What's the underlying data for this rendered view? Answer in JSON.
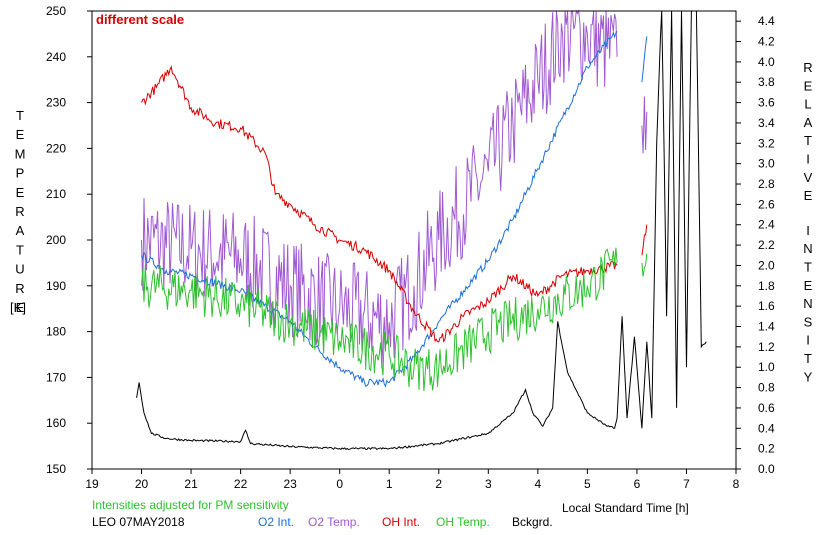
{
  "chart_data": {
    "type": "line",
    "title": "different scale",
    "xlabel": "Local Standard Time [h]",
    "ylabel_left": "TEMPERATURE",
    "ylabel_left_unit": "[K]",
    "ylabel_right": "RELATIVE INTENSITY",
    "note": "Intensities adjusted for PM sensitivity",
    "station_date": "LEO 07MAY2018",
    "xlim": [
      19,
      8
    ],
    "x_ticks": [
      "19",
      "20",
      "21",
      "22",
      "23",
      "0",
      "1",
      "2",
      "3",
      "4",
      "5",
      "6",
      "7",
      "8"
    ],
    "y_left_lim": [
      150,
      250
    ],
    "y_left_ticks": [
      "150",
      "160",
      "170",
      "180",
      "190",
      "200",
      "210",
      "220",
      "230",
      "240",
      "250"
    ],
    "y_right_lim": [
      0.0,
      4.5
    ],
    "y_right_ticks": [
      "0.0",
      "0.2",
      "0.4",
      "0.6",
      "0.8",
      "1.0",
      "1.2",
      "1.4",
      "1.6",
      "1.8",
      "2.0",
      "2.2",
      "2.4",
      "2.6",
      "2.8",
      "3.0",
      "3.2",
      "3.4",
      "3.6",
      "3.8",
      "4.0",
      "4.2",
      "4.4"
    ],
    "legend": [
      {
        "name": "O2 Int.",
        "color": "#1e6fd9"
      },
      {
        "name": "O2 Temp.",
        "color": "#a05ad0"
      },
      {
        "name": "OH Int.",
        "color": "#d40000"
      },
      {
        "name": "OH Temp.",
        "color": "#2ec02e"
      },
      {
        "name": "Bckgrd.",
        "color": "#000000"
      }
    ],
    "series": [
      {
        "name": "O2 Temp.",
        "axis": "left",
        "color": "#a05ad0",
        "noise": 11,
        "segments": [
          [
            [
              20.0,
              200
            ],
            [
              21.0,
              198
            ],
            [
              22.0,
              196
            ],
            [
              23.0,
              190
            ],
            [
              0.0,
              185
            ],
            [
              1.0,
              182
            ],
            [
              1.5,
              190
            ],
            [
              2.0,
              200
            ],
            [
              3.0,
              215
            ],
            [
              3.5,
              225
            ],
            [
              4.0,
              235
            ],
            [
              4.5,
              245
            ],
            [
              5.0,
              245
            ],
            [
              5.6,
              240
            ]
          ],
          [
            [
              6.1,
              225
            ],
            [
              6.2,
              228
            ]
          ]
        ]
      },
      {
        "name": "O2 Int.",
        "axis": "right",
        "color": "#1e6fd9",
        "noise": 0.04,
        "segments": [
          [
            [
              20.0,
              2.1
            ],
            [
              20.5,
              1.95
            ],
            [
              21.0,
              1.9
            ],
            [
              22.0,
              1.75
            ],
            [
              23.0,
              1.45
            ],
            [
              23.5,
              1.2
            ],
            [
              0.0,
              1.0
            ],
            [
              0.5,
              0.85
            ],
            [
              1.0,
              0.85
            ],
            [
              1.5,
              1.1
            ],
            [
              2.0,
              1.45
            ],
            [
              2.5,
              1.75
            ],
            [
              3.0,
              2.05
            ],
            [
              3.5,
              2.45
            ],
            [
              4.0,
              2.95
            ],
            [
              4.5,
              3.45
            ],
            [
              5.0,
              3.95
            ],
            [
              5.6,
              4.3
            ]
          ],
          [
            [
              6.1,
              3.8
            ],
            [
              6.2,
              4.25
            ]
          ]
        ]
      },
      {
        "name": "OH Int.",
        "axis": "right",
        "color": "#d40000",
        "noise": 0.05,
        "segments": [
          [
            [
              20.0,
              3.6
            ],
            [
              20.3,
              3.75
            ],
            [
              20.6,
              3.95
            ],
            [
              21.0,
              3.55
            ],
            [
              21.5,
              3.4
            ],
            [
              22.0,
              3.35
            ],
            [
              22.5,
              3.1
            ],
            [
              22.7,
              2.7
            ],
            [
              23.0,
              2.6
            ],
            [
              23.5,
              2.4
            ],
            [
              0.0,
              2.25
            ],
            [
              0.5,
              2.15
            ],
            [
              1.0,
              1.95
            ],
            [
              1.5,
              1.55
            ],
            [
              2.0,
              1.25
            ],
            [
              2.5,
              1.5
            ],
            [
              3.0,
              1.65
            ],
            [
              3.5,
              1.9
            ],
            [
              4.0,
              1.7
            ],
            [
              4.5,
              1.9
            ],
            [
              5.0,
              1.95
            ],
            [
              5.6,
              2.0
            ]
          ],
          [
            [
              6.1,
              2.1
            ],
            [
              6.2,
              2.4
            ]
          ]
        ]
      },
      {
        "name": "OH Temp.",
        "axis": "left",
        "color": "#2ec02e",
        "noise": 5,
        "segments": [
          [
            [
              20.0,
              190
            ],
            [
              21.0,
              189
            ],
            [
              22.0,
              186
            ],
            [
              23.0,
              182
            ],
            [
              0.0,
              178
            ],
            [
              1.0,
              175
            ],
            [
              1.5,
              172
            ],
            [
              2.0,
              172
            ],
            [
              3.0,
              180
            ],
            [
              4.0,
              185
            ],
            [
              5.0,
              190
            ],
            [
              5.6,
              195
            ]
          ],
          [
            [
              6.1,
              195
            ],
            [
              6.2,
              197
            ]
          ]
        ]
      },
      {
        "name": "Bckgrd.",
        "axis": "right",
        "color": "#000000",
        "noise": 0.01,
        "segments": [
          [
            [
              19.9,
              0.7
            ],
            [
              19.95,
              0.85
            ],
            [
              20.05,
              0.55
            ],
            [
              20.2,
              0.35
            ],
            [
              20.5,
              0.3
            ],
            [
              21.0,
              0.28
            ],
            [
              22.0,
              0.27
            ],
            [
              22.1,
              0.38
            ],
            [
              22.2,
              0.25
            ],
            [
              23.0,
              0.22
            ],
            [
              0.0,
              0.2
            ],
            [
              1.0,
              0.2
            ],
            [
              2.0,
              0.25
            ],
            [
              3.0,
              0.35
            ],
            [
              3.5,
              0.55
            ],
            [
              3.75,
              0.78
            ],
            [
              3.9,
              0.55
            ],
            [
              4.1,
              0.42
            ],
            [
              4.3,
              0.6
            ],
            [
              4.4,
              1.45
            ],
            [
              4.6,
              0.95
            ],
            [
              5.0,
              0.55
            ],
            [
              5.4,
              0.42
            ],
            [
              5.55,
              0.4
            ],
            [
              5.6,
              0.5
            ],
            [
              5.7,
              1.5
            ],
            [
              5.8,
              0.5
            ],
            [
              5.95,
              1.3
            ],
            [
              6.1,
              0.4
            ],
            [
              6.2,
              1.25
            ],
            [
              6.3,
              0.5
            ],
            [
              6.4,
              3.2
            ],
            [
              6.5,
              4.6
            ],
            [
              6.6,
              1.5
            ],
            [
              6.7,
              4.6
            ],
            [
              6.8,
              0.6
            ],
            [
              6.9,
              4.6
            ],
            [
              7.0,
              1.0
            ],
            [
              7.1,
              4.6
            ],
            [
              7.2,
              4.6
            ],
            [
              7.3,
              1.2
            ],
            [
              7.4,
              1.25
            ]
          ]
        ]
      }
    ]
  }
}
